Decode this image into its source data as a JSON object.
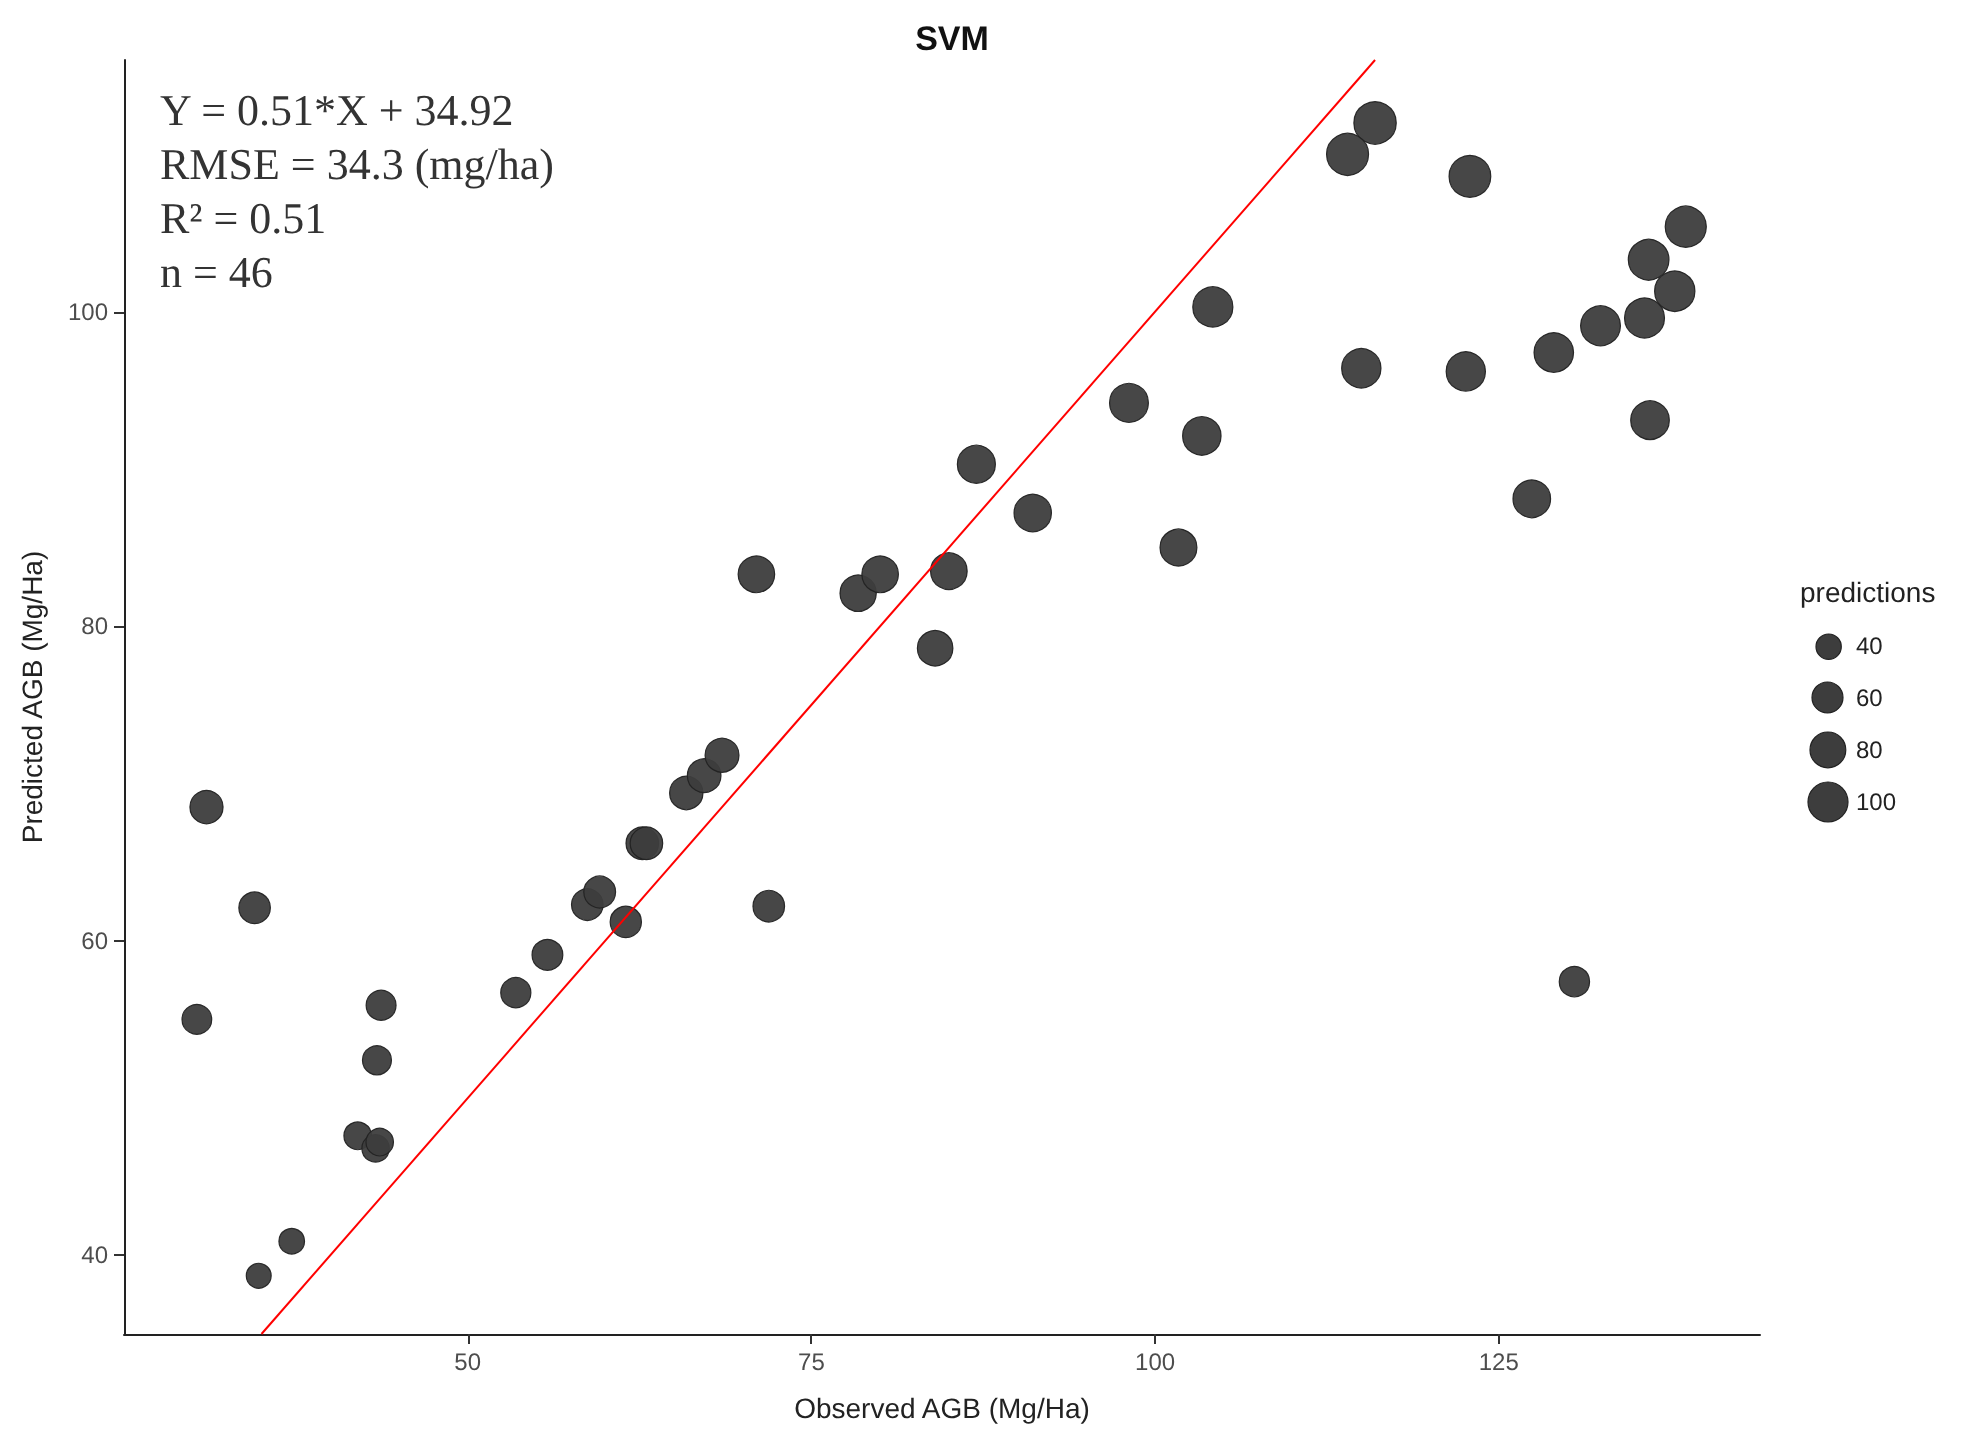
{
  "chart_data": {
    "type": "bubble",
    "title": "SVM",
    "xlabel": "Observed AGB (Mg/Ha)",
    "ylabel": "Predicted AGB (Mg/Ha)",
    "legend_title": "predictions",
    "annotations": [
      "Y = 0.51*X + 34.92",
      "RMSE = 34.3 (mg/ha)",
      "R² = 0.51",
      "n = 46"
    ],
    "xlim": [
      25,
      144
    ],
    "ylim": [
      35,
      116
    ],
    "xticks": [
      50,
      75,
      100,
      125
    ],
    "yticks": [
      40,
      60,
      80,
      100
    ],
    "grid": false,
    "size_legend": [
      40,
      60,
      80,
      100
    ],
    "marker": "circle",
    "series": [
      {
        "color": "#3d3d3d",
        "x": [
          30.3,
          31.0,
          34.5,
          34.8,
          37.2,
          42.0,
          43.3,
          43.6,
          43.4,
          43.7,
          53.5,
          55.8,
          58.7,
          59.6,
          61.5,
          62.7,
          63.0,
          65.9,
          67.2,
          68.5,
          71.0,
          71.9,
          78.4,
          80.0,
          85.0,
          84.0,
          87.0,
          91.1,
          98.1,
          101.7,
          103.4,
          104.2,
          116.0,
          114.0,
          122.9,
          138.6,
          135.9,
          137.8,
          135.6,
          132.4,
          129.0,
          115.0,
          122.6,
          136.0,
          127.4,
          130.5
        ],
        "values": [
          55.0,
          68.5,
          62.1,
          38.7,
          40.9,
          47.6,
          46.8,
          47.2,
          52.4,
          55.9,
          56.7,
          59.1,
          62.3,
          63.1,
          61.2,
          66.2,
          66.2,
          69.4,
          70.5,
          71.8,
          83.3,
          62.2,
          82.1,
          83.3,
          83.5,
          78.6,
          90.3,
          87.2,
          94.2,
          85.0,
          92.1,
          100.3,
          112.0,
          110.0,
          108.6,
          105.4,
          103.3,
          101.3,
          99.6,
          99.1,
          97.4,
          96.4,
          96.2,
          93.1,
          88.1,
          57.4
        ],
        "sizes": [
          55.0,
          68.5,
          62.1,
          38.7,
          40.9,
          47.6,
          46.8,
          47.2,
          52.4,
          55.9,
          56.7,
          59.1,
          62.3,
          63.1,
          61.2,
          66.2,
          66.2,
          69.4,
          70.5,
          71.8,
          83.3,
          62.2,
          82.1,
          83.3,
          83.5,
          78.6,
          90.3,
          87.2,
          94.2,
          85.0,
          92.1,
          100.3,
          112.0,
          110.0,
          108.6,
          105.4,
          103.3,
          101.3,
          99.6,
          99.1,
          97.4,
          96.4,
          96.2,
          93.1,
          88.1,
          57.4
        ]
      },
      {
        "type": "line",
        "color": "#ff0000",
        "marker": "none",
        "line_style": "solid",
        "x": [
          35,
          116
        ],
        "values": [
          35,
          116
        ]
      }
    ]
  }
}
